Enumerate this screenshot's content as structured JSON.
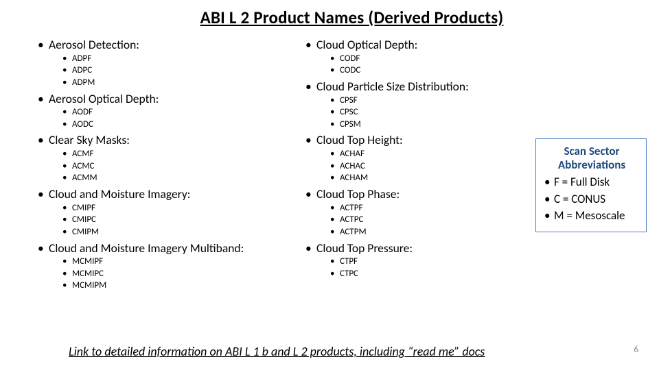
{
  "title": "ABI L 2 Product Names (Derived Products)",
  "left_categories": [
    {
      "name": "Aerosol Detection:",
      "items": [
        "ADPF",
        "ADPC",
        "ADPM"
      ]
    },
    {
      "name": "Aerosol Optical Depth:",
      "items": [
        "AODF",
        "AODC"
      ]
    },
    {
      "name": "Clear Sky Masks:",
      "items": [
        "ACMF",
        "ACMC",
        "ACMM"
      ]
    },
    {
      "name": "Cloud and Moisture Imagery:",
      "items": [
        "CMIPF",
        "CMIPC",
        "CMIPM"
      ]
    },
    {
      "name": "Cloud and Moisture Imagery Multiband:",
      "items": [
        "MCMIPF",
        "MCMIPC",
        "MCMIPM"
      ]
    }
  ],
  "right_categories": [
    {
      "name": "Cloud Optical Depth:",
      "items": [
        "CODF",
        "CODC"
      ]
    },
    {
      "name": "Cloud Particle Size Distribution:",
      "items": [
        "CPSF",
        "CPSC",
        "CPSM"
      ]
    },
    {
      "name": "Cloud Top Height:",
      "items": [
        "ACHAF",
        "ACHAC",
        "ACHAM"
      ]
    },
    {
      "name": "Cloud Top Phase:",
      "items": [
        "ACTPF",
        "ACTPC",
        "ACTPM"
      ]
    },
    {
      "name": "Cloud Top Pressure:",
      "items": [
        "CTPF",
        "CTPC"
      ]
    }
  ],
  "legend": {
    "title": "Scan Sector Abbreviations",
    "items": [
      "F = Full Disk",
      "C =  CONUS",
      "M = Mesoscale"
    ]
  },
  "footer_link": "Link to detailed information on ABI L 1 b and L 2 products, including “read me” docs",
  "page_number": "6",
  "colors": {
    "title_color": "#000000",
    "legend_border": "#4a7ebb",
    "legend_title_color": "#1f497d",
    "page_num_color": "#888888",
    "background": "#ffffff"
  }
}
